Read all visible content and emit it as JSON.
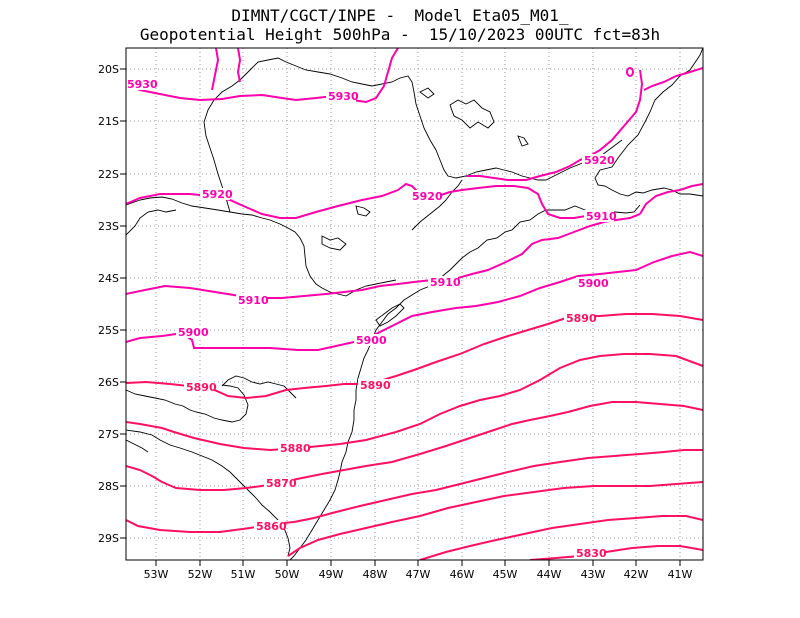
{
  "title": {
    "line1": "DIMNT/CGCT/INPE -  Model Eta05_M01_",
    "line2": "Geopotential Height 500hPa -  15/10/2023 00UTC fct=83h"
  },
  "axes": {
    "lon_labels": [
      "53W",
      "52W",
      "51W",
      "50W",
      "49W",
      "48W",
      "47W",
      "46W",
      "45W",
      "44W",
      "43W",
      "42W",
      "41W"
    ],
    "lat_labels": [
      "20S",
      "21S",
      "22S",
      "23S",
      "24S",
      "25S",
      "26S",
      "27S",
      "28S",
      "29S"
    ]
  },
  "colors": {
    "contour_magenta": "#ff00aa",
    "contour_red": "#ff1050",
    "coast": "#000000",
    "grid": "#9a9a9a"
  },
  "contour_labels": [
    {
      "text": "5930"
    },
    {
      "text": "5930"
    },
    {
      "text": "5920"
    },
    {
      "text": "5920"
    },
    {
      "text": "5920"
    },
    {
      "text": "5910"
    },
    {
      "text": "5910"
    },
    {
      "text": "5910"
    },
    {
      "text": "5900"
    },
    {
      "text": "5900"
    },
    {
      "text": "5900"
    },
    {
      "text": "5890"
    },
    {
      "text": "5890"
    },
    {
      "text": "5890"
    },
    {
      "text": "5880"
    },
    {
      "text": "5870"
    },
    {
      "text": "5860"
    },
    {
      "text": "5830"
    }
  ]
}
